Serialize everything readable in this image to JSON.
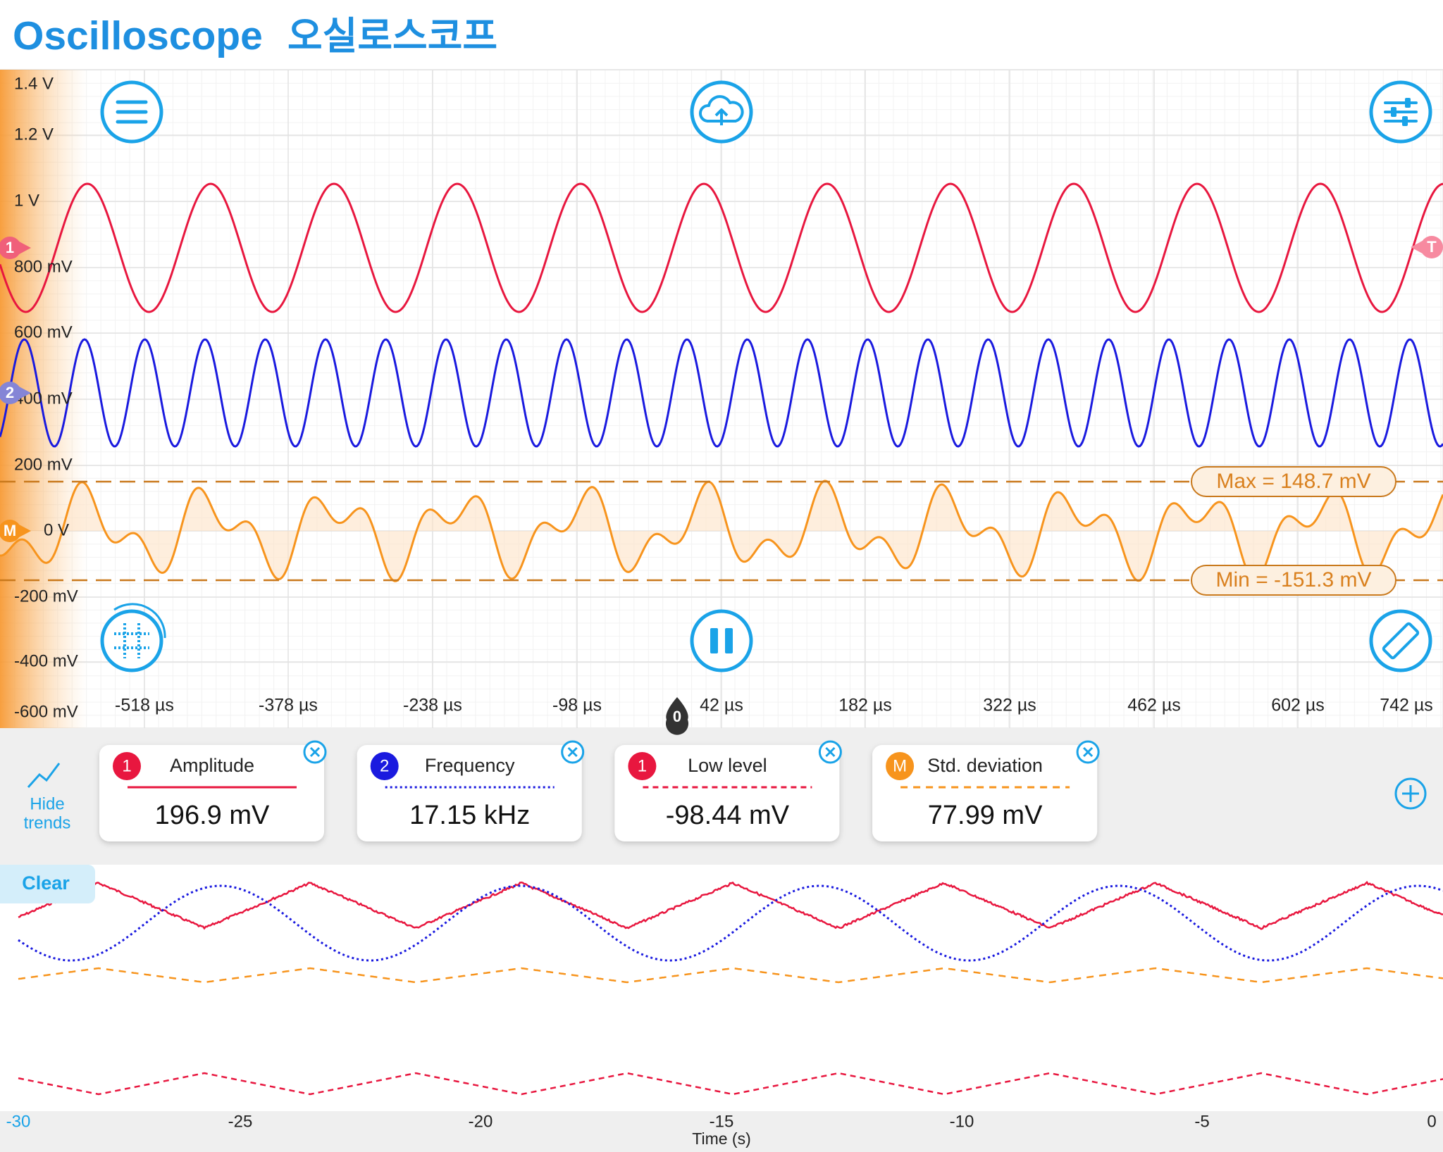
{
  "header": {
    "title": "Oscilloscope",
    "subtitle": "오실로스코프"
  },
  "scope": {
    "y_labels": [
      "1.4 V",
      "1.2 V",
      "1 V",
      "800 mV",
      "600 mV",
      "400 mV",
      "200 mV",
      "0 V",
      "-200 mV",
      "-400 mV",
      "-600 mV"
    ],
    "x_labels": [
      "-518 µs",
      "-378 µs",
      "-238 µs",
      "-98 µs",
      "42 µs",
      "182 µs",
      "322 µs",
      "462 µs",
      "602 µs",
      "742 µs"
    ],
    "channel_markers": [
      "1",
      "2",
      "M"
    ],
    "trigger_marker": "T",
    "zero_marker": "0",
    "max_label": "Max = 148.7 mV",
    "min_label": "Min = -151.3 mV"
  },
  "measurements": [
    {
      "channel": "1",
      "name": "Amplitude",
      "value": "196.9 mV"
    },
    {
      "channel": "2",
      "name": "Frequency",
      "value": "17.15 kHz"
    },
    {
      "channel": "1",
      "name": "Low level",
      "value": "-98.44 mV"
    },
    {
      "channel": "M",
      "name": "Std. deviation",
      "value": "77.99 mV"
    }
  ],
  "trends": {
    "toggle_lines": [
      "Hide",
      "trends"
    ],
    "clear": "Clear",
    "x_labels": [
      "-30",
      "-25",
      "-20",
      "-15",
      "-10",
      "-5",
      "0"
    ],
    "x_title": "Time (s)"
  }
}
